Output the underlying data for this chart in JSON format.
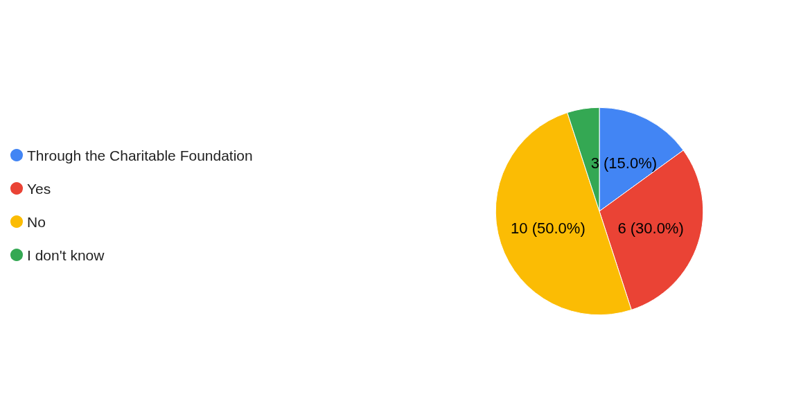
{
  "chart_data": {
    "type": "pie",
    "categories": [
      "Through the Charitable Foundation",
      "Yes",
      "No",
      "I don't know"
    ],
    "values": [
      3,
      6,
      10,
      1
    ],
    "colors": [
      "#4285f4",
      "#ea4335",
      "#fbbc04",
      "#34a853"
    ],
    "value_labels": [
      "3 (15.0%)",
      "6 (30.0%)",
      "10 (50.0%)",
      null
    ],
    "legend": "left"
  }
}
